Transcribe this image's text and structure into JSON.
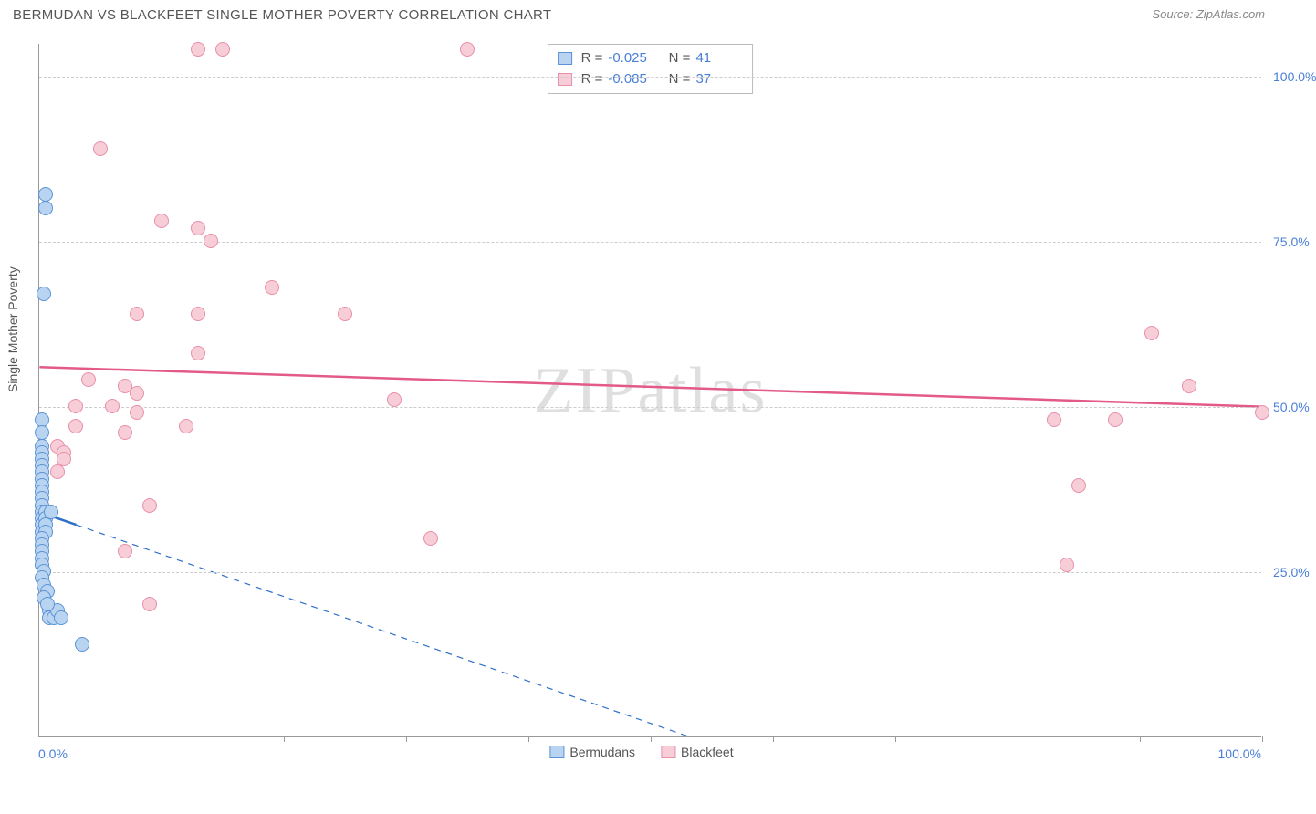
{
  "title": "BERMUDAN VS BLACKFEET SINGLE MOTHER POVERTY CORRELATION CHART",
  "source": "Source: ZipAtlas.com",
  "watermark": "ZIPatlas",
  "y_axis_label": "Single Mother Poverty",
  "axes": {
    "x_min_label": "0.0%",
    "x_max_label": "100.0%",
    "y_ticks": [
      {
        "v": 25,
        "label": "25.0%"
      },
      {
        "v": 50,
        "label": "50.0%"
      },
      {
        "v": 75,
        "label": "75.0%"
      },
      {
        "v": 100,
        "label": "100.0%"
      }
    ],
    "x_tick_positions": [
      10,
      20,
      30,
      40,
      50,
      60,
      70,
      80,
      90,
      100
    ],
    "xlim": [
      0,
      100
    ],
    "ylim": [
      0,
      105
    ],
    "grid_color": "#cccccc",
    "axis_color": "#999999",
    "background_color": "#ffffff"
  },
  "series": {
    "bermudans": {
      "label": "Bermudans",
      "fill": "#b9d4f1",
      "stroke": "#5a93d6",
      "marker_radius": 8,
      "trend": {
        "y_at_x0": 34,
        "y_at_x100": -30,
        "solid_until_x": 3,
        "color": "#2f6fc9",
        "width": 2.5
      },
      "R": "-0.025",
      "N": "41",
      "points": [
        {
          "x": 0.5,
          "y": 82
        },
        {
          "x": 0.5,
          "y": 80
        },
        {
          "x": 0.4,
          "y": 67
        },
        {
          "x": 0.2,
          "y": 48
        },
        {
          "x": 0.2,
          "y": 46
        },
        {
          "x": 0.2,
          "y": 44
        },
        {
          "x": 0.2,
          "y": 43
        },
        {
          "x": 0.2,
          "y": 42
        },
        {
          "x": 0.2,
          "y": 41
        },
        {
          "x": 0.2,
          "y": 40
        },
        {
          "x": 0.2,
          "y": 39
        },
        {
          "x": 0.2,
          "y": 38
        },
        {
          "x": 0.2,
          "y": 37
        },
        {
          "x": 0.2,
          "y": 36
        },
        {
          "x": 0.2,
          "y": 35
        },
        {
          "x": 0.2,
          "y": 34
        },
        {
          "x": 0.2,
          "y": 33
        },
        {
          "x": 0.2,
          "y": 32
        },
        {
          "x": 0.2,
          "y": 31
        },
        {
          "x": 0.5,
          "y": 34
        },
        {
          "x": 0.5,
          "y": 33
        },
        {
          "x": 0.5,
          "y": 32
        },
        {
          "x": 0.5,
          "y": 31
        },
        {
          "x": 0.2,
          "y": 30
        },
        {
          "x": 0.2,
          "y": 29
        },
        {
          "x": 0.2,
          "y": 28
        },
        {
          "x": 0.2,
          "y": 27
        },
        {
          "x": 0.2,
          "y": 26
        },
        {
          "x": 0.4,
          "y": 25
        },
        {
          "x": 0.2,
          "y": 24
        },
        {
          "x": 0.4,
          "y": 23
        },
        {
          "x": 0.7,
          "y": 22
        },
        {
          "x": 0.4,
          "y": 21
        },
        {
          "x": 0.8,
          "y": 19
        },
        {
          "x": 0.8,
          "y": 18
        },
        {
          "x": 1.2,
          "y": 18
        },
        {
          "x": 1.5,
          "y": 19
        },
        {
          "x": 1.8,
          "y": 18
        },
        {
          "x": 0.7,
          "y": 20
        },
        {
          "x": 3.5,
          "y": 14
        },
        {
          "x": 1.0,
          "y": 34
        }
      ]
    },
    "blackfeet": {
      "label": "Blackfeet",
      "fill": "#f7cdd8",
      "stroke": "#e88fa8",
      "marker_radius": 8,
      "trend": {
        "y_at_x0": 56,
        "y_at_x100": 50,
        "color": "#e35a87",
        "width": 2.5
      },
      "R": "-0.085",
      "N": "37",
      "points": [
        {
          "x": 13,
          "y": 104
        },
        {
          "x": 15,
          "y": 104
        },
        {
          "x": 35,
          "y": 104
        },
        {
          "x": 5,
          "y": 89
        },
        {
          "x": 10,
          "y": 78
        },
        {
          "x": 13,
          "y": 77
        },
        {
          "x": 14,
          "y": 75
        },
        {
          "x": 19,
          "y": 68
        },
        {
          "x": 25,
          "y": 64
        },
        {
          "x": 8,
          "y": 64
        },
        {
          "x": 13,
          "y": 64
        },
        {
          "x": 91,
          "y": 61
        },
        {
          "x": 13,
          "y": 58
        },
        {
          "x": 4,
          "y": 54
        },
        {
          "x": 7,
          "y": 53
        },
        {
          "x": 8,
          "y": 52
        },
        {
          "x": 94,
          "y": 53
        },
        {
          "x": 29,
          "y": 51
        },
        {
          "x": 3,
          "y": 50
        },
        {
          "x": 6,
          "y": 50
        },
        {
          "x": 8,
          "y": 49
        },
        {
          "x": 100,
          "y": 49
        },
        {
          "x": 3,
          "y": 47
        },
        {
          "x": 12,
          "y": 47
        },
        {
          "x": 83,
          "y": 48
        },
        {
          "x": 88,
          "y": 48
        },
        {
          "x": 1.5,
          "y": 44
        },
        {
          "x": 2,
          "y": 43
        },
        {
          "x": 2,
          "y": 42
        },
        {
          "x": 7,
          "y": 46
        },
        {
          "x": 1.5,
          "y": 40
        },
        {
          "x": 85,
          "y": 38
        },
        {
          "x": 9,
          "y": 35
        },
        {
          "x": 32,
          "y": 30
        },
        {
          "x": 7,
          "y": 28
        },
        {
          "x": 84,
          "y": 26
        },
        {
          "x": 9,
          "y": 20
        }
      ]
    }
  },
  "stats_box": {
    "r_label": "R =",
    "n_label": "N ="
  },
  "typography": {
    "title_fontsize": 15,
    "axis_label_fontsize": 14,
    "tick_fontsize": 14,
    "legend_fontsize": 14,
    "stats_fontsize": 15,
    "watermark_fontsize": 72
  }
}
